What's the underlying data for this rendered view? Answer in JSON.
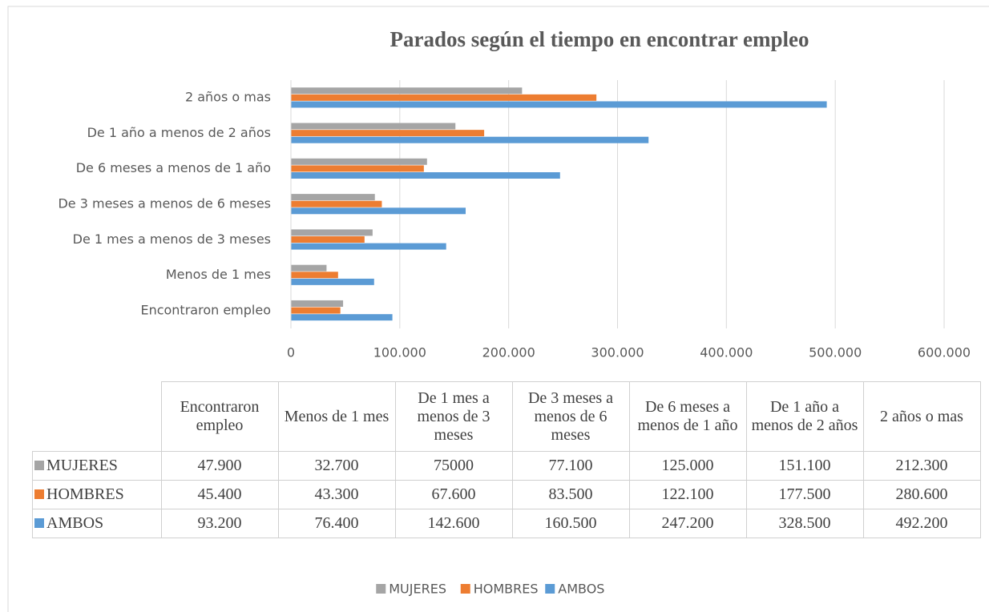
{
  "chart_data": {
    "type": "bar",
    "orientation": "horizontal",
    "title": "Parados según el tiempo en encontrar empleo",
    "categories": [
      "Encontraron empleo",
      "Menos de 1 mes",
      "De 1 mes a menos de 3 meses",
      "De 3 meses a menos de 6 meses",
      "De 6 meses a menos de 1 año",
      "De 1 año a menos de 2 años",
      "2 años o mas"
    ],
    "series": [
      {
        "name": "MUJERES",
        "color": "#a5a5a5",
        "values": [
          47900,
          32700,
          75000,
          77100,
          125000,
          151100,
          212300
        ],
        "value_labels": [
          "47.900",
          "32.700",
          "75000",
          "77.100",
          "125.000",
          "151.100",
          "212.300"
        ]
      },
      {
        "name": "HOMBRES",
        "color": "#ed7d31",
        "values": [
          45400,
          43300,
          67600,
          83500,
          122100,
          177500,
          280600
        ],
        "value_labels": [
          "45.400",
          "43.300",
          "67.600",
          "83.500",
          "122.100",
          "177.500",
          "280.600"
        ]
      },
      {
        "name": "AMBOS",
        "color": "#5b9bd5",
        "values": [
          93200,
          76400,
          142600,
          160500,
          247200,
          328500,
          492200
        ],
        "value_labels": [
          "93.200",
          "76.400",
          "142.600",
          "160.500",
          "247.200",
          "328.500",
          "492.200"
        ]
      }
    ],
    "xlim": [
      0,
      600000
    ],
    "xticks": [
      0,
      {
        "value": 100000,
        "label": "100.000"
      },
      {
        "value": 200000,
        "label": "200.000"
      },
      {
        "value": 300000,
        "label": "300.000"
      },
      {
        "value": 400000,
        "label": "400.000"
      },
      {
        "value": 500000,
        "label": "500.000"
      },
      {
        "value": 600000,
        "label": "600.000"
      }
    ],
    "grid": true,
    "legend": "bottom",
    "data_table": true
  }
}
